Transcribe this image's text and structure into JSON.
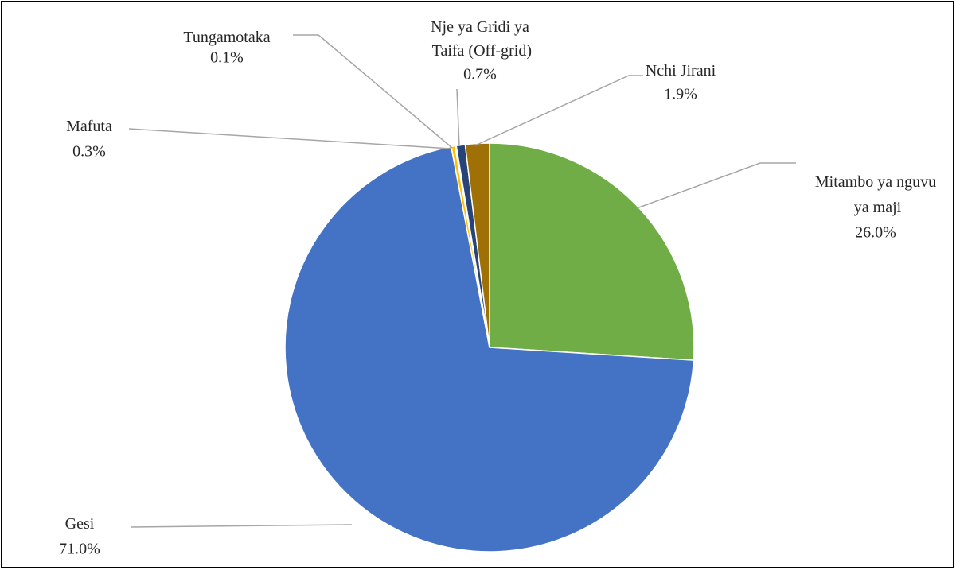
{
  "chart_data": {
    "type": "pie",
    "categories": [
      "Mitambo ya nguvu ya maji",
      "Gesi",
      "Mafuta",
      "Tungamotaka",
      "Nje ya Gridi ya Taifa (Off-grid)",
      "Nchi Jirani"
    ],
    "values": [
      26,
      71,
      0.3,
      0.1,
      0.7,
      1.9
    ],
    "value_labels": [
      "26.0%",
      "71.0%",
      "0.3%",
      "0.1%",
      "0.7%",
      "1.9%"
    ],
    "colors": [
      "#70ad47",
      "#4472c4",
      "#ffc000",
      "#a5a5a5",
      "#264478",
      "#9e7006"
    ]
  }
}
